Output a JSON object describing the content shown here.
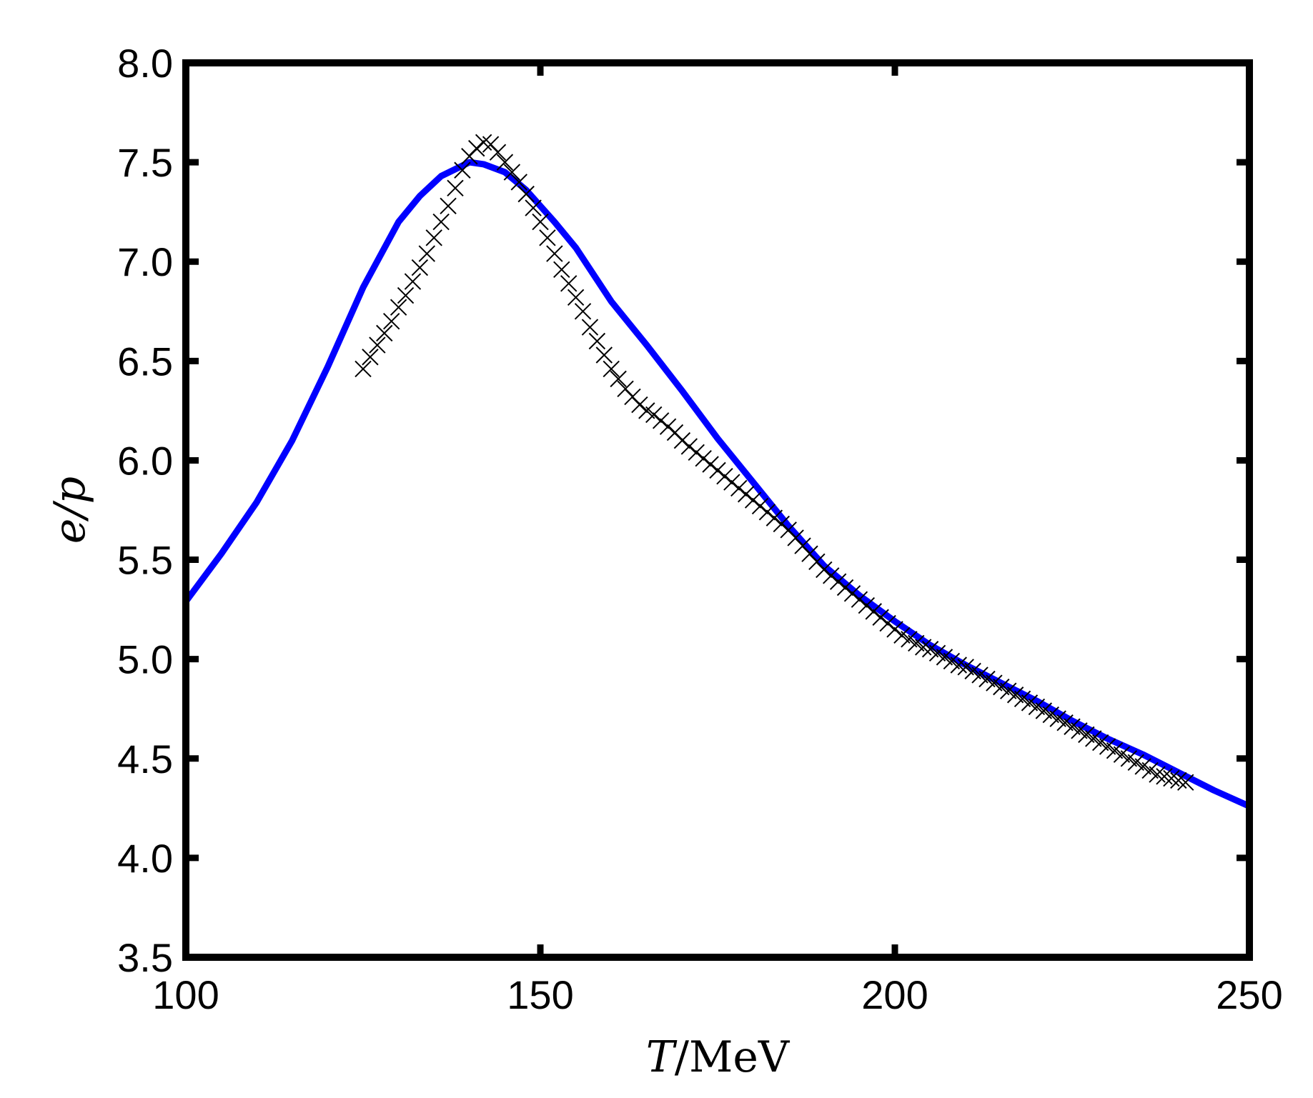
{
  "chart_data": {
    "type": "line",
    "title": "",
    "xlabel_var": "T",
    "xlabel_unit": "/MeV",
    "ylabel": "e/p",
    "xlim": [
      100,
      250
    ],
    "ylim": [
      3.5,
      8.0
    ],
    "xticks": [
      100,
      150,
      200,
      250
    ],
    "xtick_labels": [
      "100",
      "150",
      "200",
      "250"
    ],
    "yticks": [
      3.5,
      4.0,
      4.5,
      5.0,
      5.5,
      6.0,
      6.5,
      7.0,
      7.5,
      8.0
    ],
    "ytick_labels": [
      "3.5",
      "4.0",
      "4.5",
      "5.0",
      "5.5",
      "6.0",
      "6.5",
      "7.0",
      "7.5",
      "8.0"
    ],
    "grid": false,
    "series": [
      {
        "style": "line",
        "color": "#0000ff",
        "x": [
          100,
          105,
          110,
          115,
          120,
          125,
          130,
          133,
          136,
          140,
          142,
          145,
          148,
          152,
          155,
          160,
          165,
          170,
          175,
          180,
          185,
          190,
          195,
          200,
          205,
          210,
          215,
          220,
          225,
          230,
          235,
          240,
          245,
          250
        ],
        "y": [
          5.29,
          5.53,
          5.79,
          6.1,
          6.47,
          6.87,
          7.2,
          7.33,
          7.43,
          7.5,
          7.49,
          7.45,
          7.36,
          7.2,
          7.07,
          6.8,
          6.58,
          6.35,
          6.11,
          5.89,
          5.67,
          5.47,
          5.32,
          5.19,
          5.07,
          4.97,
          4.88,
          4.79,
          4.69,
          4.6,
          4.52,
          4.43,
          4.34,
          4.26
        ]
      },
      {
        "style": "markers",
        "marker": "x",
        "color": "#000000",
        "x": [
          125,
          126,
          127,
          128,
          129,
          130,
          131,
          132,
          133,
          134,
          135,
          136,
          137,
          138,
          139,
          140,
          141,
          142,
          143,
          144,
          145,
          146,
          147,
          148,
          149,
          150,
          151,
          152,
          153,
          154,
          155,
          156,
          157,
          158,
          159,
          160,
          161,
          162,
          163,
          164,
          165,
          166,
          167,
          168,
          169,
          170,
          171,
          172,
          173,
          174,
          175,
          176,
          177,
          178,
          179,
          180,
          181,
          182,
          183,
          184,
          185,
          186,
          187,
          188,
          189,
          190,
          191,
          192,
          193,
          194,
          195,
          196,
          197,
          198,
          199,
          200,
          201,
          202,
          203,
          204,
          205,
          206,
          207,
          208,
          209,
          210,
          211,
          212,
          213,
          214,
          215,
          216,
          217,
          218,
          219,
          220,
          221,
          222,
          223,
          224,
          225,
          226,
          227,
          228,
          229,
          230,
          231,
          232,
          233,
          234,
          235,
          236,
          237,
          238,
          239,
          240,
          241
        ],
        "y": [
          6.46,
          6.52,
          6.58,
          6.64,
          6.7,
          6.77,
          6.83,
          6.9,
          6.97,
          7.04,
          7.12,
          7.2,
          7.28,
          7.37,
          7.46,
          7.53,
          7.57,
          7.6,
          7.59,
          7.55,
          7.5,
          7.45,
          7.4,
          7.34,
          7.27,
          7.2,
          7.12,
          7.04,
          6.96,
          6.89,
          6.82,
          6.75,
          6.67,
          6.6,
          6.53,
          6.46,
          6.41,
          6.36,
          6.32,
          6.28,
          6.25,
          6.23,
          6.2,
          6.17,
          6.14,
          6.1,
          6.07,
          6.04,
          6.01,
          5.98,
          5.95,
          5.92,
          5.89,
          5.86,
          5.83,
          5.8,
          5.77,
          5.74,
          5.71,
          5.68,
          5.65,
          5.61,
          5.57,
          5.53,
          5.49,
          5.45,
          5.42,
          5.39,
          5.36,
          5.33,
          5.3,
          5.27,
          5.24,
          5.21,
          5.18,
          5.15,
          5.12,
          5.1,
          5.08,
          5.06,
          5.05,
          5.03,
          5.01,
          4.99,
          4.97,
          4.96,
          4.94,
          4.92,
          4.9,
          4.88,
          4.86,
          4.84,
          4.82,
          4.8,
          4.78,
          4.76,
          4.74,
          4.72,
          4.7,
          4.68,
          4.66,
          4.64,
          4.62,
          4.6,
          4.58,
          4.56,
          4.54,
          4.52,
          4.5,
          4.48,
          4.46,
          4.44,
          4.42,
          4.41,
          4.4,
          4.39,
          4.38
        ]
      }
    ]
  }
}
